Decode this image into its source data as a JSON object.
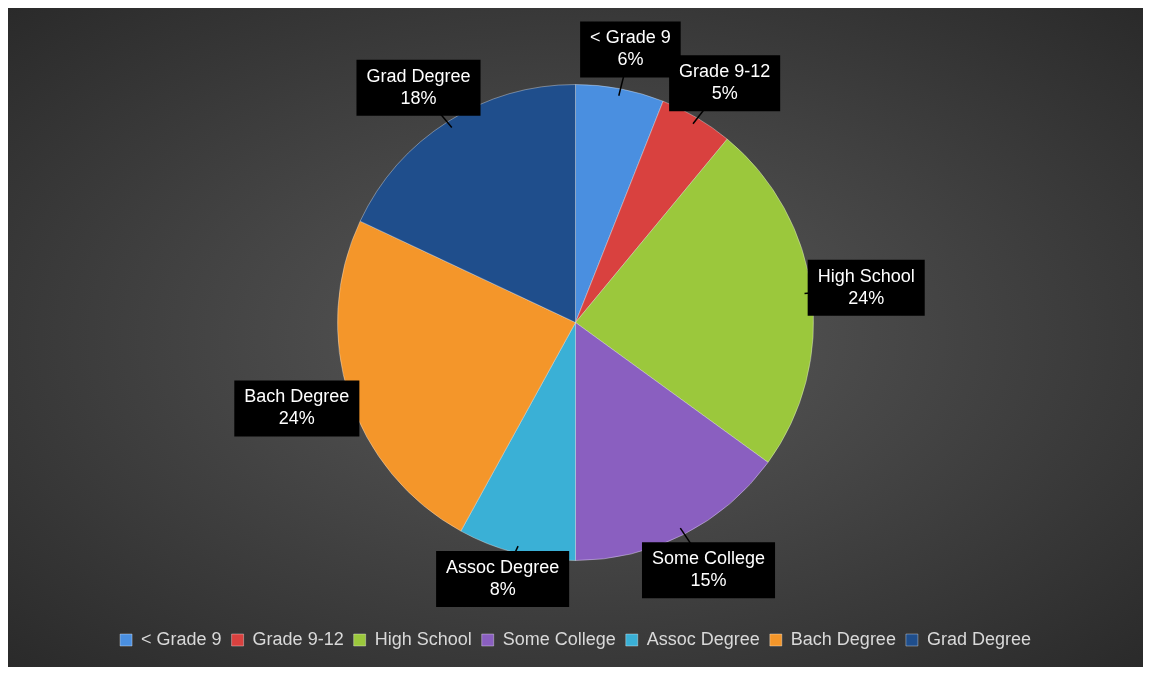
{
  "chart_data": {
    "type": "pie",
    "categories": [
      "< Grade 9",
      "Grade 9-12",
      "High School",
      "Some College",
      "Assoc Degree",
      "Bach Degree",
      "Grad Degree"
    ],
    "values": [
      6,
      5,
      24,
      15,
      8,
      24,
      18
    ],
    "value_labels": [
      "6%",
      "5%",
      "24%",
      "15%",
      "8%",
      "24%",
      "18%"
    ],
    "colors": [
      "#4a8fe0",
      "#d9413f",
      "#9bc83c",
      "#8a5fc0",
      "#3ab0d6",
      "#f4962a",
      "#1f4e8c"
    ],
    "legend": "bottom"
  }
}
